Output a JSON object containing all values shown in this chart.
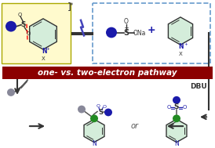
{
  "bg_color": "#ffffff",
  "title_text": "one- vs. two-electron pathway",
  "title_bg": "#8B0000",
  "title_color": "#ffffff",
  "yellow_box_color": "#FFFACD",
  "dashed_box_color": "#6699CC",
  "pyridine_fill": "#d4edda",
  "pyridine_stroke": "#333333",
  "blue_dot_color": "#1a1aaa",
  "gray_dot_color": "#888899",
  "green_dot_color": "#228B22",
  "arrow_color": "#333333",
  "or_text": "or",
  "dbu_text": "DBU"
}
